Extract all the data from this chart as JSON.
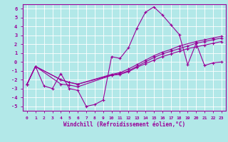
{
  "background_color": "#b2e8e8",
  "grid_color": "#c8c8c8",
  "line_color": "#990099",
  "xlabel": "Windchill (Refroidissement éolien,°C)",
  "xlim": [
    -0.5,
    23.5
  ],
  "ylim": [
    -5.5,
    6.5
  ],
  "xticks": [
    0,
    1,
    2,
    3,
    4,
    5,
    6,
    7,
    8,
    9,
    10,
    11,
    12,
    13,
    14,
    15,
    16,
    17,
    18,
    19,
    20,
    21,
    22,
    23
  ],
  "yticks": [
    -5,
    -4,
    -3,
    -2,
    -1,
    0,
    1,
    2,
    3,
    4,
    5,
    6
  ],
  "lines": [
    {
      "x": [
        0,
        1,
        2,
        3,
        4,
        5,
        6,
        7,
        8,
        9,
        10,
        11,
        12,
        13,
        14,
        15,
        16,
        17,
        18,
        19,
        20,
        21,
        22,
        23
      ],
      "y": [
        -2.5,
        -0.5,
        -2.7,
        -3.0,
        -1.3,
        -3.0,
        -3.2,
        -5.0,
        -4.8,
        -4.3,
        0.6,
        0.4,
        1.6,
        3.8,
        5.6,
        6.2,
        5.3,
        4.2,
        3.1,
        -0.3,
        2.1,
        -0.4,
        -0.1,
        0.0
      ]
    },
    {
      "x": [
        0,
        1,
        4,
        5,
        6,
        10,
        11,
        12,
        13,
        14,
        15,
        16,
        17,
        18,
        19,
        20,
        21,
        22,
        23
      ],
      "y": [
        -2.5,
        -0.5,
        -2.0,
        -2.3,
        -2.5,
        -1.5,
        -1.3,
        -1.0,
        -0.5,
        0.0,
        0.5,
        0.9,
        1.2,
        1.5,
        1.8,
        2.1,
        2.3,
        2.5,
        2.7
      ]
    },
    {
      "x": [
        0,
        1,
        4,
        5,
        6,
        10,
        11,
        12,
        13,
        14,
        15,
        16,
        17,
        18,
        20,
        21,
        22,
        23
      ],
      "y": [
        -2.5,
        -0.5,
        -2.0,
        -2.3,
        -2.5,
        -1.4,
        -1.2,
        -0.8,
        -0.3,
        0.2,
        0.7,
        1.1,
        1.4,
        1.8,
        2.3,
        2.5,
        2.7,
        2.9
      ]
    },
    {
      "x": [
        0,
        1,
        4,
        5,
        6,
        10,
        11,
        12,
        13,
        14,
        15,
        16,
        17,
        18,
        19,
        20,
        21,
        22,
        23
      ],
      "y": [
        -2.5,
        -0.5,
        -2.5,
        -2.6,
        -2.8,
        -1.5,
        -1.4,
        -1.1,
        -0.6,
        -0.2,
        0.2,
        0.6,
        0.9,
        1.2,
        1.5,
        1.7,
        1.9,
        2.1,
        2.3
      ]
    }
  ]
}
